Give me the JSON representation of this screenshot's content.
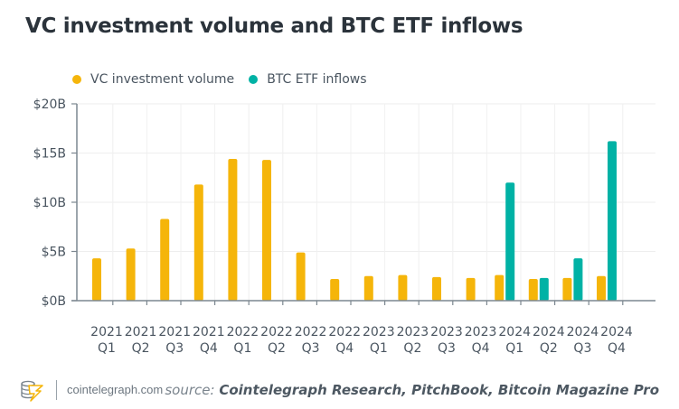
{
  "header": {
    "title": "VC investment volume and BTC ETF inflows"
  },
  "legend": {
    "items": [
      {
        "label": "VC investment volume",
        "color": "#F5B50A"
      },
      {
        "label": "BTC ETF inflows",
        "color": "#00B2A5"
      }
    ]
  },
  "footer": {
    "site": "cointelegraph.com",
    "logo_icon": "cointelegraph-logo-icon",
    "source_prefix": "source: ",
    "source_names": "Cointelegraph Research, PitchBook, Bitcoin Magazine Pro"
  },
  "chart_data": {
    "type": "bar",
    "title": "VC investment volume and BTC ETF inflows",
    "xlabel": "",
    "ylabel": "",
    "ylim": [
      0,
      20
    ],
    "yticks": [
      0,
      5,
      10,
      15,
      20
    ],
    "ytick_labels": [
      "$0B",
      "$5B",
      "$10B",
      "$15B",
      "$20B"
    ],
    "grid": true,
    "legend_position": "top-left",
    "categories": [
      [
        "2021",
        "Q1"
      ],
      [
        "2021",
        "Q2"
      ],
      [
        "2021",
        "Q3"
      ],
      [
        "2021",
        "Q4"
      ],
      [
        "2022",
        "Q1"
      ],
      [
        "2022",
        "Q2"
      ],
      [
        "2022",
        "Q3"
      ],
      [
        "2022",
        "Q4"
      ],
      [
        "2023",
        "Q1"
      ],
      [
        "2023",
        "Q2"
      ],
      [
        "2023",
        "Q3"
      ],
      [
        "2023",
        "Q4"
      ],
      [
        "2024",
        "Q1"
      ],
      [
        "2024",
        "Q2"
      ],
      [
        "2024",
        "Q3"
      ],
      [
        "2024",
        "Q4"
      ]
    ],
    "series": [
      {
        "name": "VC investment volume",
        "color": "#F5B50A",
        "unit": "$B",
        "values": [
          4.3,
          5.3,
          8.3,
          11.8,
          14.4,
          14.3,
          4.9,
          2.2,
          2.5,
          2.6,
          2.4,
          2.3,
          2.6,
          2.2,
          2.3,
          2.5
        ]
      },
      {
        "name": "BTC ETF inflows",
        "color": "#00B2A5",
        "unit": "$B",
        "values": [
          null,
          null,
          null,
          null,
          null,
          null,
          null,
          null,
          null,
          null,
          null,
          null,
          12.0,
          2.3,
          4.3,
          16.2
        ]
      }
    ]
  }
}
